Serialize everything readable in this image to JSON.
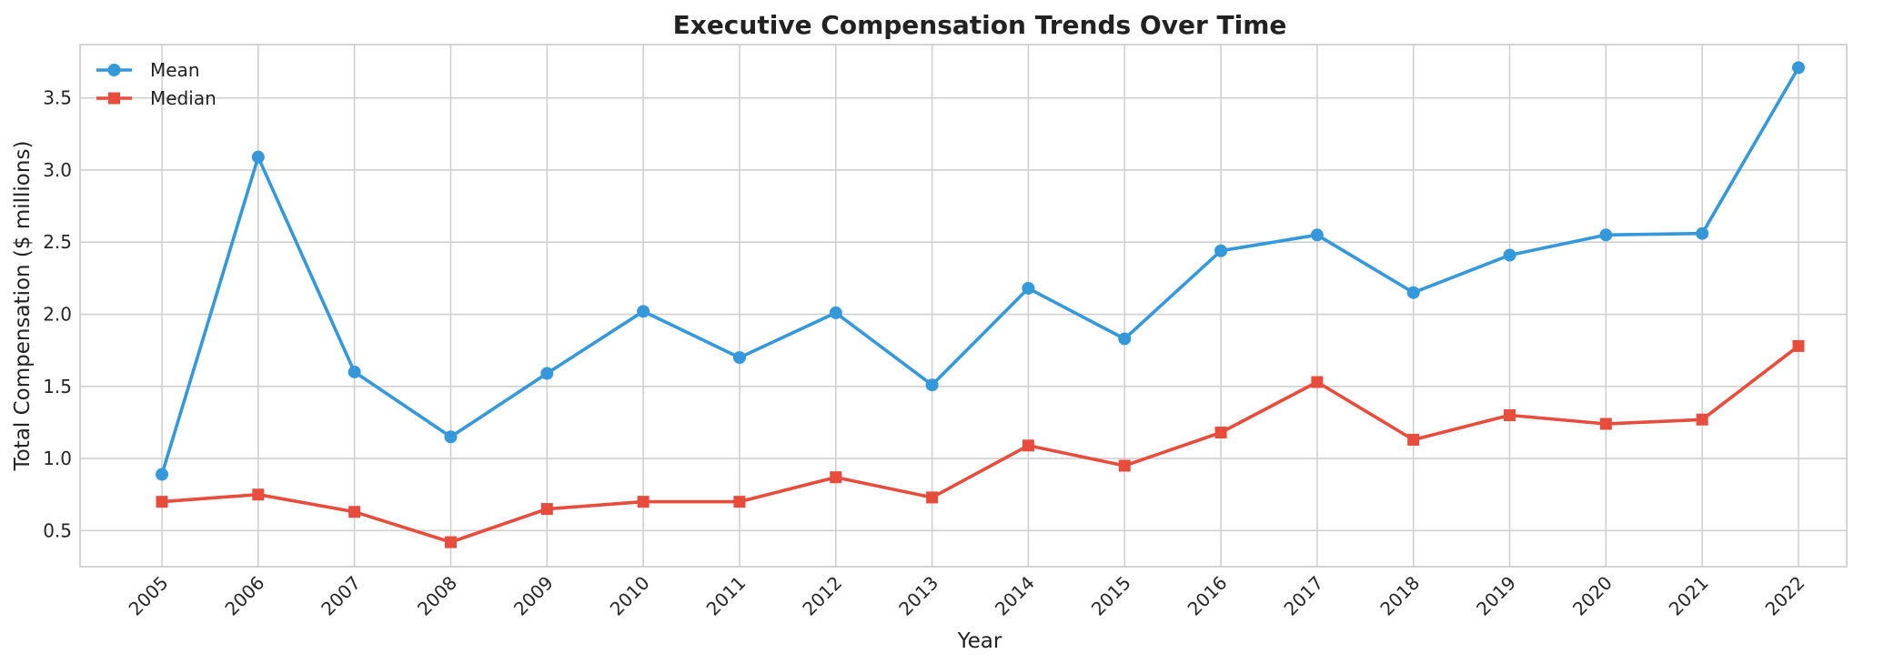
{
  "chart_data": {
    "type": "line",
    "title": "Executive Compensation Trends Over Time",
    "xlabel": "Year",
    "ylabel": "Total Compensation ($ millions)",
    "categories": [
      "2005",
      "2006",
      "2007",
      "2008",
      "2009",
      "2010",
      "2011",
      "2012",
      "2013",
      "2014",
      "2015",
      "2016",
      "2017",
      "2018",
      "2019",
      "2020",
      "2021",
      "2022"
    ],
    "ylim": [
      0.25,
      3.87
    ],
    "yticks": [
      "0.5",
      "1.0",
      "1.5",
      "2.0",
      "2.5",
      "3.0",
      "3.5"
    ],
    "grid": true,
    "legend_position": "top-left",
    "series": [
      {
        "name": "Mean",
        "color": "#3498db",
        "marker": "circle",
        "values": [
          0.89,
          3.09,
          1.6,
          1.15,
          1.59,
          2.02,
          1.7,
          2.01,
          1.51,
          2.18,
          1.83,
          2.44,
          2.55,
          2.15,
          2.41,
          2.55,
          2.56,
          3.71
        ]
      },
      {
        "name": "Median",
        "color": "#e74c3c",
        "marker": "square",
        "values": [
          0.7,
          0.75,
          0.63,
          0.42,
          0.65,
          0.7,
          0.7,
          0.87,
          0.73,
          1.09,
          0.95,
          1.18,
          1.53,
          1.13,
          1.3,
          1.24,
          1.27,
          1.78
        ]
      }
    ]
  }
}
